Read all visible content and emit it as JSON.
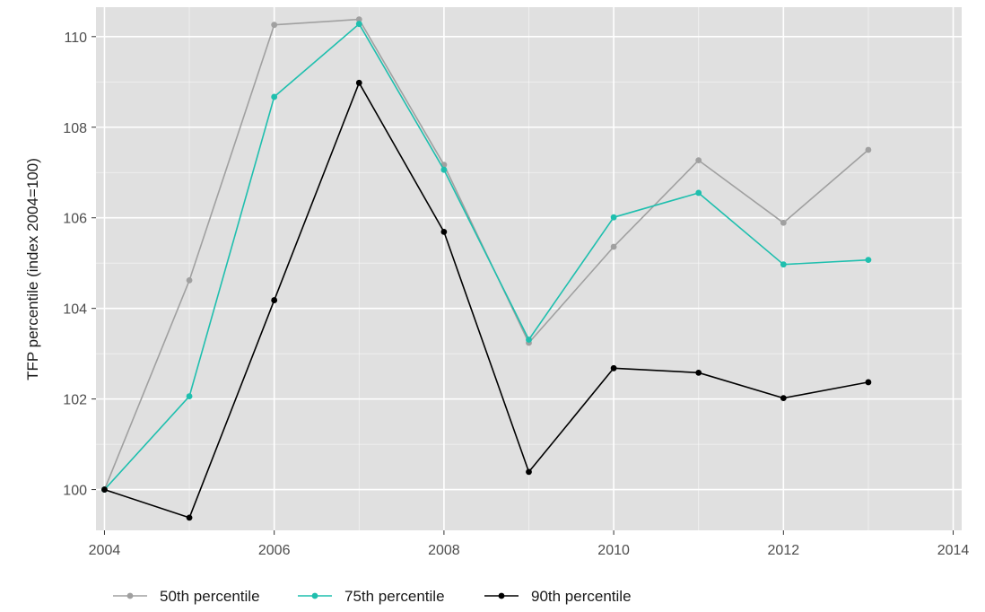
{
  "chart_data": {
    "type": "line",
    "title": "",
    "xlabel": "",
    "ylabel": "TFP percentile (index 2004=100)",
    "xlim": [
      2003.9,
      2014.1
    ],
    "ylim": [
      99.1,
      110.65
    ],
    "xticks": [
      2004,
      2006,
      2008,
      2010,
      2012,
      2014
    ],
    "yticks": [
      100,
      102,
      104,
      106,
      108,
      110
    ],
    "grid": true,
    "legend_position": "bottom",
    "x": [
      2004,
      2005,
      2006,
      2007,
      2008,
      2009,
      2010,
      2011,
      2012,
      2013
    ],
    "series": [
      {
        "name": "50th percentile",
        "color": "#a0a0a0",
        "values": [
          100.0,
          104.62,
          110.26,
          110.38,
          107.17,
          103.24,
          105.36,
          107.27,
          105.89,
          107.5
        ]
      },
      {
        "name": "75th percentile",
        "color": "#1fbfae",
        "values": [
          100.0,
          102.06,
          108.67,
          110.28,
          107.06,
          103.31,
          106.01,
          106.55,
          104.97,
          105.07
        ]
      },
      {
        "name": "90th percentile",
        "color": "#000000",
        "values": [
          100.0,
          99.38,
          104.18,
          108.98,
          105.69,
          100.39,
          102.68,
          102.58,
          102.02,
          102.37
        ]
      }
    ],
    "colors": {
      "panel_background": "#e0e0e0",
      "grid": "#ffffff",
      "tick_label": "#4d4d4d"
    }
  }
}
